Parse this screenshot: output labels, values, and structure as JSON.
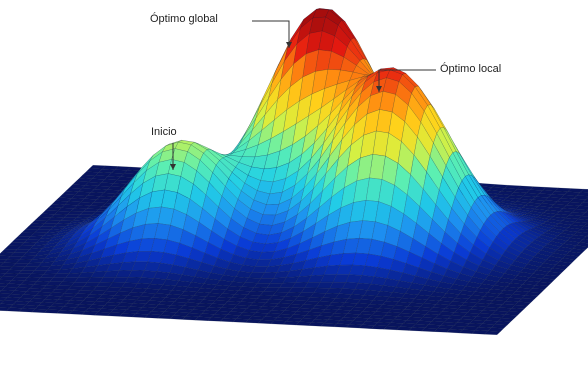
{
  "annotations": {
    "global_optimum": "Óptimo global",
    "local_optimum": "Óptimo local",
    "start": "Inicio"
  },
  "surface": {
    "colormap": [
      "#08145e",
      "#0a3bd6",
      "#1d8ff0",
      "#22d0e6",
      "#5ef0b0",
      "#d8f040",
      "#ffd21a",
      "#ff8a10",
      "#e61a10",
      "#a60d0d"
    ],
    "mesh_color": "#0b1a3a"
  }
}
